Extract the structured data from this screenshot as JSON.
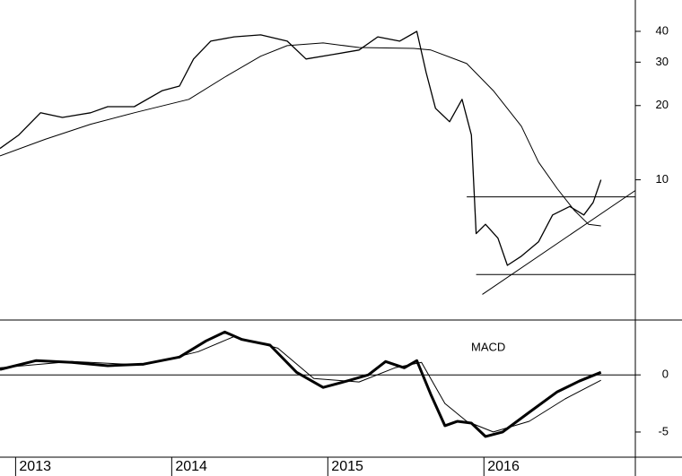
{
  "chart_data": [
    {
      "type": "line",
      "log_scale": true,
      "xlim": [
        2012.9,
        2016.97
      ],
      "ylim": [
        2.7,
        53.6
      ],
      "yticks": [
        10,
        20,
        30,
        40
      ],
      "series": [
        {
          "color": "#000000",
          "width": 1.3,
          "x": [
            2012.9,
            2013.02,
            2013.16,
            2013.3,
            2013.48,
            2013.59,
            2013.76,
            2013.94,
            2014.05,
            2014.14,
            2014.25,
            2014.4,
            2014.57,
            2014.74,
            2014.86,
            2015.03,
            2015.2,
            2015.32,
            2015.46,
            2015.57,
            2015.63,
            2015.69,
            2015.78,
            2015.86,
            2015.92,
            2015.95,
            2016.01,
            2016.09,
            2016.15,
            2016.24,
            2016.35,
            2016.44,
            2016.55,
            2016.64,
            2016.7,
            2016.75
          ],
          "values": [
            13.4,
            15.2,
            18.7,
            17.9,
            18.7,
            19.8,
            19.8,
            23.0,
            24.0,
            30.9,
            36.5,
            38.0,
            38.7,
            36.5,
            30.9,
            32.2,
            33.6,
            38.0,
            36.5,
            40.0,
            27.2,
            19.5,
            17.2,
            21.2,
            15.2,
            6.05,
            6.6,
            5.8,
            4.5,
            4.9,
            5.6,
            7.2,
            7.8,
            7.2,
            8.1,
            10.0
          ]
        },
        {
          "color": "#000000",
          "width": 1,
          "x": [
            2012.9,
            2013.19,
            2013.48,
            2013.76,
            2014.11,
            2014.34,
            2014.57,
            2014.74,
            2014.97,
            2015.2,
            2015.55,
            2015.66,
            2015.89,
            2016.06,
            2016.24,
            2016.35,
            2016.47,
            2016.58,
            2016.67,
            2016.75
          ],
          "values": [
            12.5,
            14.6,
            16.8,
            18.7,
            21.2,
            26.1,
            31.7,
            35.0,
            35.9,
            34.4,
            34.1,
            33.6,
            29.6,
            23.0,
            16.5,
            11.8,
            9.2,
            7.5,
            6.6,
            6.5
          ]
        },
        {
          "color": "#000000",
          "width": 1,
          "x": [
            2015.89,
            2016.97
          ],
          "values": [
            8.53,
            8.53
          ]
        },
        {
          "color": "#000000",
          "width": 1,
          "x": [
            2015.95,
            2016.97
          ],
          "values": [
            4.13,
            4.13
          ]
        },
        {
          "color": "#000000",
          "width": 1,
          "x": [
            2015.99,
            2016.97
          ],
          "values": [
            3.43,
            9.05
          ]
        }
      ]
    },
    {
      "type": "line",
      "annotation": "MACD",
      "xlim": [
        2012.9,
        2016.97
      ],
      "ylim": [
        -7.2,
        4.8
      ],
      "yticks": [
        -5,
        0
      ],
      "baseline": 0,
      "xticks": [
        2013,
        2014,
        2015,
        2016
      ],
      "series": [
        {
          "color": "#000000",
          "width": 3,
          "x": [
            2012.9,
            2013.13,
            2013.36,
            2013.59,
            2013.82,
            2014.05,
            2014.22,
            2014.34,
            2014.45,
            2014.63,
            2014.8,
            2014.97,
            2015.14,
            2015.26,
            2015.37,
            2015.49,
            2015.57,
            2015.66,
            2015.75,
            2015.83,
            2015.92,
            2016.01,
            2016.12,
            2016.29,
            2016.47,
            2016.61,
            2016.75
          ],
          "values": [
            0.47,
            1.25,
            1.1,
            0.8,
            0.94,
            1.56,
            2.97,
            3.75,
            3.1,
            2.6,
            0.23,
            -1.1,
            -0.47,
            0,
            1.17,
            0.62,
            1.25,
            -1.72,
            -4.45,
            -4.06,
            -4.22,
            -5.39,
            -5,
            -3.28,
            -1.48,
            -0.55,
            0.23
          ]
        },
        {
          "color": "#000000",
          "width": 1,
          "x": [
            2012.9,
            2013.36,
            2013.82,
            2014.17,
            2014.4,
            2014.68,
            2014.91,
            2015.2,
            2015.43,
            2015.6,
            2015.75,
            2015.89,
            2016.06,
            2016.29,
            2016.52,
            2016.75
          ],
          "values": [
            0.62,
            1.17,
            0.86,
            2.03,
            3.36,
            2.34,
            -0.31,
            -0.62,
            0.62,
            1.09,
            -2.5,
            -4.06,
            -5,
            -4.06,
            -2.1,
            -0.47
          ]
        }
      ]
    }
  ]
}
